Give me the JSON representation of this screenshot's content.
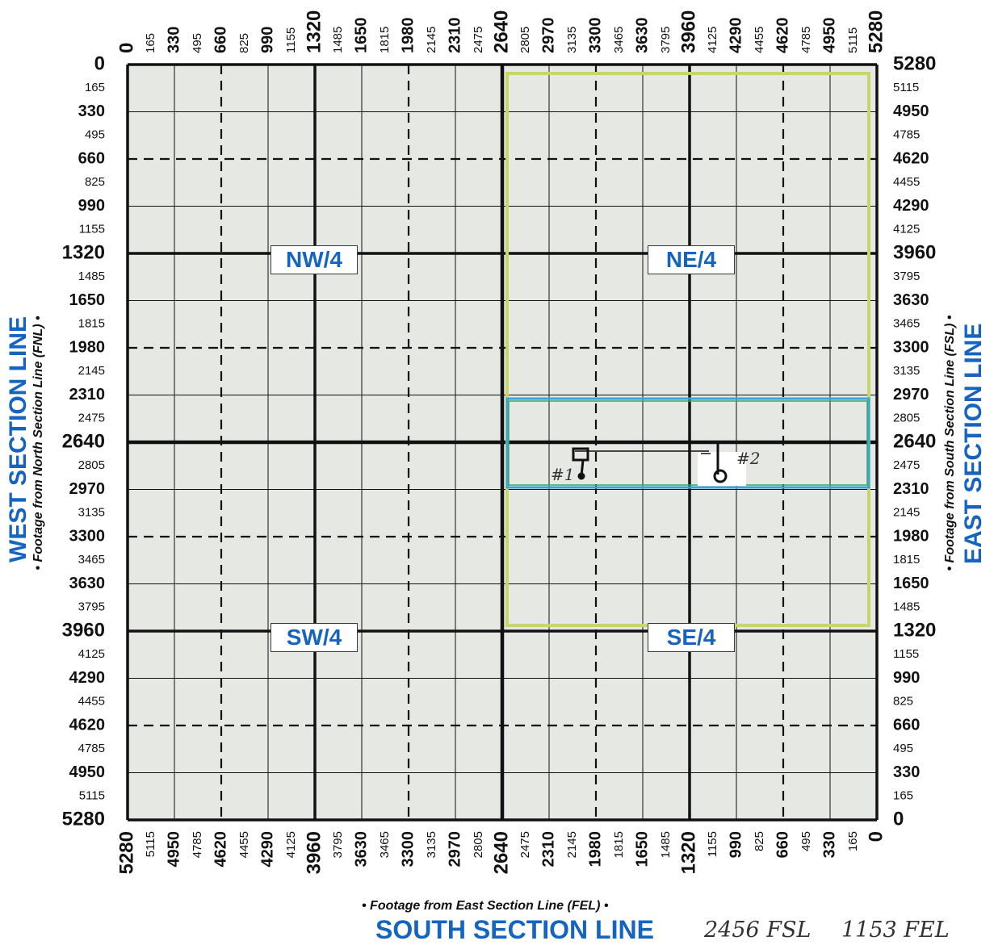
{
  "labels": {
    "west_title": "WEST SECTION LINE",
    "west_sub": "• Footage from North Section Line (FNL) •",
    "east_title": "EAST SECTION LINE",
    "east_sub": "• Footage from South Section Line (FSL) •",
    "south_sub": "• Footage from East Section Line (FEL) •",
    "south_title": "SOUTH SECTION LINE"
  },
  "quarters": {
    "nw": "NW/4",
    "ne": "NE/4",
    "sw": "SW/4",
    "se": "SE/4"
  },
  "handwritten": {
    "fsl": "2456 FSL",
    "fel": "1153 FEL",
    "well1": "#1",
    "well2": "#2"
  },
  "axes": {
    "top": [
      "0",
      "165",
      "330",
      "495",
      "660",
      "825",
      "990",
      "1155",
      "1320",
      "1485",
      "1650",
      "1815",
      "1980",
      "2145",
      "2310",
      "2475",
      "2640",
      "2805",
      "2970",
      "3135",
      "3300",
      "3465",
      "3630",
      "3795",
      "3960",
      "4125",
      "4290",
      "4455",
      "4620",
      "4785",
      "4950",
      "5115",
      "5280"
    ],
    "bottom": [
      "5280",
      "5115",
      "4950",
      "4785",
      "4620",
      "4455",
      "4290",
      "4125",
      "3960",
      "3795",
      "3630",
      "3465",
      "3300",
      "3135",
      "2970",
      "2805",
      "2640",
      "2475",
      "2310",
      "2145",
      "1980",
      "1815",
      "1650",
      "1485",
      "1320",
      "1155",
      "990",
      "825",
      "660",
      "495",
      "330",
      "165",
      "0"
    ],
    "left": [
      "0",
      "165",
      "330",
      "495",
      "660",
      "825",
      "990",
      "1155",
      "1320",
      "1485",
      "1650",
      "1815",
      "1980",
      "2145",
      "2310",
      "2475",
      "2640",
      "2805",
      "2970",
      "3135",
      "3300",
      "3465",
      "3630",
      "3795",
      "3960",
      "4125",
      "4290",
      "4455",
      "4620",
      "4785",
      "4950",
      "5115",
      "5280"
    ],
    "right": [
      "5280",
      "5115",
      "4950",
      "4785",
      "4620",
      "4455",
      "4290",
      "4125",
      "3960",
      "3795",
      "3630",
      "3465",
      "3300",
      "3135",
      "2970",
      "2805",
      "2640",
      "2475",
      "2310",
      "2145",
      "1980",
      "1815",
      "1650",
      "1485",
      "1320",
      "1155",
      "990",
      "825",
      "660",
      "495",
      "330",
      "165",
      "0"
    ]
  },
  "colors": {
    "accent": "#1565c0",
    "grid_bg": "#e6e8e4",
    "lease_outline": "#c6d66a",
    "unit_outline": "#3aa4d8"
  }
}
